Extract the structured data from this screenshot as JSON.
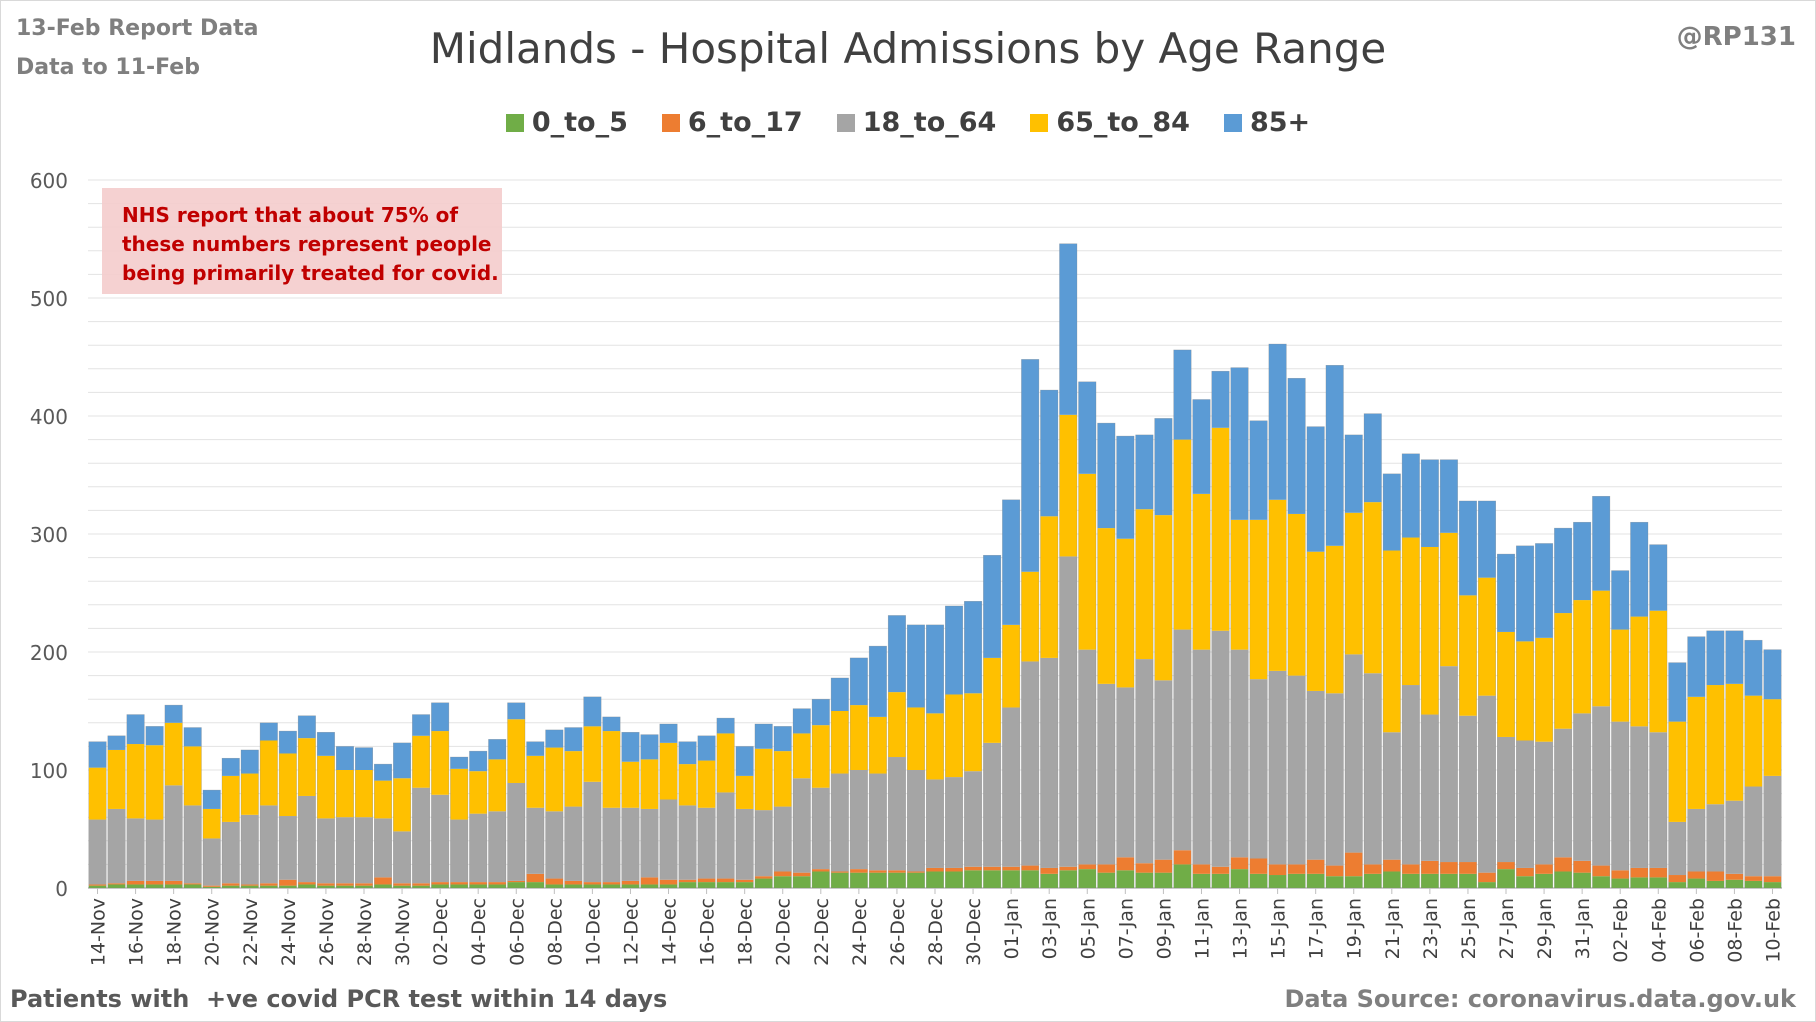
{
  "header": {
    "report_date": "13-Feb Report Data",
    "data_to": "Data to 11-Feb",
    "handle": "@RP131"
  },
  "annotation": "NHS report that about 75% of these numbers represent people being primarily treated for covid.",
  "footer": {
    "left": "Patients with  +ve covid PCR test within 14 days",
    "right": "Data Source: coronavirus.data.gov.uk"
  },
  "chart_data": {
    "type": "bar",
    "stacked": true,
    "title": "Midlands - Hospital Admissions by Age Range",
    "xlabel": "",
    "ylabel": "",
    "ylim": [
      0,
      600
    ],
    "yticks": [
      0,
      100,
      200,
      300,
      400,
      500,
      600
    ],
    "grid": true,
    "legend_position": "top",
    "start_date": "2021-11-14",
    "xticklabels": [
      "14-Nov",
      "16-Nov",
      "18-Nov",
      "20-Nov",
      "22-Nov",
      "24-Nov",
      "26-Nov",
      "28-Nov",
      "30-Nov",
      "02-Dec",
      "04-Dec",
      "06-Dec",
      "08-Dec",
      "10-Dec",
      "12-Dec",
      "14-Dec",
      "16-Dec",
      "18-Dec",
      "20-Dec",
      "22-Dec",
      "24-Dec",
      "26-Dec",
      "28-Dec",
      "30-Dec",
      "01-Jan",
      "03-Jan",
      "05-Jan",
      "07-Jan",
      "09-Jan",
      "11-Jan",
      "13-Jan",
      "15-Jan",
      "17-Jan",
      "19-Jan",
      "21-Jan",
      "23-Jan",
      "25-Jan",
      "27-Jan",
      "29-Jan",
      "31-Jan",
      "02-Feb",
      "04-Feb",
      "06-Feb",
      "08-Feb",
      "10-Feb"
    ],
    "series": [
      {
        "name": "0_to_5",
        "color": "#70ad47",
        "values": [
          2,
          3,
          3,
          3,
          3,
          3,
          1,
          2,
          2,
          2,
          2,
          3,
          2,
          2,
          2,
          3,
          2,
          2,
          3,
          3,
          3,
          3,
          5,
          5,
          3,
          3,
          3,
          3,
          3,
          3,
          3,
          5,
          5,
          5,
          5,
          8,
          10,
          10,
          14,
          13,
          13,
          13,
          13,
          13,
          14,
          14,
          15,
          15,
          15,
          15,
          12,
          15,
          16,
          13,
          15,
          13,
          13,
          20,
          12,
          12,
          16,
          12,
          11,
          12,
          12,
          10,
          10,
          12,
          14,
          12,
          12,
          12,
          12,
          5,
          16,
          10,
          12,
          14,
          13,
          10,
          8,
          9,
          9,
          5,
          8,
          6,
          7,
          6,
          5
        ]
      },
      {
        "name": "6_to_17",
        "color": "#ed7d31",
        "values": [
          1,
          1,
          3,
          3,
          3,
          1,
          1,
          2,
          1,
          2,
          5,
          2,
          2,
          2,
          2,
          6,
          2,
          2,
          2,
          2,
          2,
          2,
          1,
          7,
          5,
          3,
          2,
          2,
          3,
          6,
          4,
          2,
          3,
          3,
          2,
          2,
          4,
          3,
          2,
          1,
          3,
          2,
          2,
          1,
          3,
          3,
          3,
          3,
          3,
          4,
          5,
          3,
          4,
          7,
          11,
          8,
          11,
          12,
          8,
          6,
          10,
          13,
          9,
          8,
          12,
          9,
          20,
          8,
          10,
          8,
          11,
          10,
          10,
          8,
          6,
          7,
          8,
          12,
          10,
          9,
          7,
          8,
          8,
          6,
          6,
          8,
          5,
          4,
          5
        ]
      },
      {
        "name": "18_to_64",
        "color": "#a5a5a5",
        "values": [
          55,
          63,
          53,
          52,
          81,
          66,
          40,
          52,
          59,
          66,
          54,
          73,
          55,
          56,
          56,
          50,
          44,
          81,
          74,
          53,
          58,
          60,
          83,
          56,
          57,
          63,
          85,
          63,
          62,
          58,
          68,
          63,
          60,
          73,
          60,
          56,
          55,
          80,
          69,
          83,
          84,
          82,
          96,
          86,
          75,
          77,
          81,
          105,
          135,
          173,
          178,
          263,
          182,
          153,
          144,
          173,
          152,
          187,
          182,
          200,
          176,
          152,
          164,
          160,
          143,
          146,
          168,
          162,
          108,
          152,
          124,
          166,
          124,
          150,
          106,
          108,
          104,
          109,
          125,
          135,
          126,
          120,
          115,
          45,
          53,
          57,
          62,
          76,
          85
        ]
      },
      {
        "name": "65_to_84",
        "color": "#ffc000",
        "values": [
          44,
          50,
          63,
          63,
          53,
          50,
          25,
          39,
          35,
          55,
          53,
          49,
          53,
          40,
          40,
          32,
          45,
          44,
          54,
          43,
          36,
          44,
          54,
          44,
          54,
          47,
          47,
          65,
          39,
          42,
          48,
          35,
          40,
          50,
          28,
          52,
          47,
          38,
          53,
          53,
          55,
          48,
          55,
          53,
          56,
          70,
          66,
          72,
          70,
          76,
          120,
          120,
          149,
          132,
          126,
          127,
          140,
          161,
          132,
          172,
          110,
          135,
          145,
          137,
          118,
          125,
          120,
          145,
          154,
          125,
          142,
          113,
          102,
          100,
          89,
          84,
          88,
          98,
          96,
          98,
          78,
          93,
          103,
          85,
          95,
          101,
          99,
          77,
          65
        ]
      },
      {
        "name": "85+",
        "color": "#5b9bd5",
        "values": [
          22,
          12,
          25,
          16,
          15,
          16,
          16,
          15,
          20,
          15,
          19,
          19,
          20,
          20,
          19,
          14,
          30,
          18,
          24,
          10,
          17,
          17,
          14,
          12,
          15,
          20,
          25,
          12,
          25,
          21,
          16,
          19,
          21,
          13,
          25,
          21,
          21,
          21,
          22,
          28,
          40,
          60,
          65,
          70,
          75,
          75,
          78,
          87,
          106,
          180,
          107,
          145,
          78,
          89,
          87,
          63,
          82,
          76,
          80,
          48,
          129,
          84,
          132,
          115,
          106,
          153,
          66,
          75,
          65,
          71,
          74,
          62,
          80,
          65,
          66,
          81,
          80,
          72,
          66,
          80,
          50,
          80,
          56,
          50,
          51,
          46,
          45,
          47,
          42
        ]
      }
    ]
  }
}
